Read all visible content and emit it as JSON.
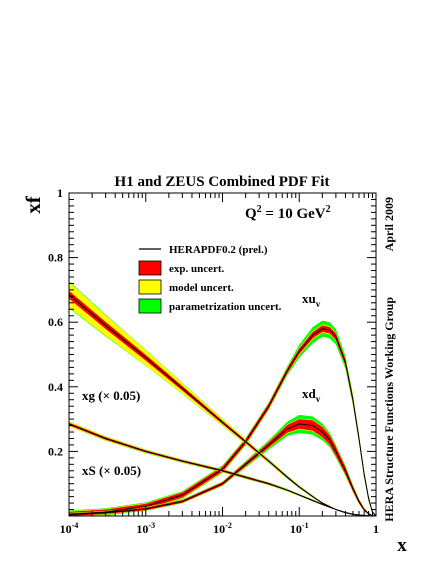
{
  "chart_data": {
    "type": "line",
    "title": "H1 and ZEUS Combined PDF Fit",
    "xlabel": "x",
    "ylabel": "xf",
    "x_scale": "log",
    "xlim": [
      0.0001,
      1
    ],
    "ylim": [
      0,
      1
    ],
    "x_ticks": [
      {
        "value": 0.0001,
        "base": "10",
        "exp": "-4"
      },
      {
        "value": 0.001,
        "base": "10",
        "exp": "-3"
      },
      {
        "value": 0.01,
        "base": "10",
        "exp": "-2"
      },
      {
        "value": 0.1,
        "base": "10",
        "exp": "-1"
      },
      {
        "value": 1,
        "base": "1",
        "exp": ""
      }
    ],
    "y_ticks": [
      {
        "value": 0.2,
        "label": "0.2"
      },
      {
        "value": 0.4,
        "label": "0.4"
      },
      {
        "value": 0.6,
        "label": "0.6"
      },
      {
        "value": 0.8,
        "label": "0.8"
      },
      {
        "value": 1.0,
        "label": "1"
      }
    ],
    "grid": false,
    "annotations": {
      "q2": {
        "base": "Q",
        "sup1": "2",
        "mid": " = 10 GeV",
        "sup2": "2"
      },
      "date": "April 2009",
      "group": "HERA Structure Functions Working Group"
    },
    "legend": {
      "placement": "top-center",
      "entries": [
        {
          "label": "HERAPDF0.2 (prel.)",
          "kind": "line",
          "color": "#000000"
        },
        {
          "label": "exp. uncert.",
          "kind": "box",
          "color": "#ff0000"
        },
        {
          "label": "model uncert.",
          "kind": "box",
          "color": "#ffff00"
        },
        {
          "label": "parametrization uncert.",
          "kind": "box",
          "color": "#00ff00"
        }
      ]
    },
    "colors": {
      "central": "#000000",
      "exp": "#ff0000",
      "model": "#ffff00",
      "param": "#00ff00"
    },
    "series": [
      {
        "label": {
          "base": "xu",
          "sub": "v",
          "suffix": ""
        },
        "x": [
          0.0001,
          0.0003,
          0.001,
          0.003,
          0.01,
          0.02,
          0.04,
          0.07,
          0.1,
          0.15,
          0.2,
          0.25,
          0.3,
          0.4,
          0.5,
          0.6,
          0.7,
          0.8,
          0.9,
          1.0
        ],
        "y": [
          0.005,
          0.012,
          0.03,
          0.065,
          0.145,
          0.23,
          0.34,
          0.45,
          0.51,
          0.56,
          0.58,
          0.575,
          0.555,
          0.475,
          0.36,
          0.24,
          0.13,
          0.055,
          0.012,
          0.0
        ],
        "exp_band": [
          0.008,
          0.008,
          0.008,
          0.008,
          0.008,
          0.008,
          0.008,
          0.008,
          0.009,
          0.01,
          0.01,
          0.01,
          0.01,
          0.01,
          0.01,
          0.009,
          0.008,
          0.006,
          0.003,
          0.0
        ],
        "model_band": [
          0.01,
          0.01,
          0.01,
          0.01,
          0.01,
          0.01,
          0.01,
          0.01,
          0.012,
          0.013,
          0.013,
          0.013,
          0.012,
          0.012,
          0.011,
          0.01,
          0.009,
          0.007,
          0.004,
          0.0
        ],
        "param_band": [
          0.012,
          0.012,
          0.012,
          0.012,
          0.012,
          0.012,
          0.012,
          0.014,
          0.02,
          0.025,
          0.025,
          0.025,
          0.024,
          0.02,
          0.016,
          0.013,
          0.01,
          0.008,
          0.004,
          0.0
        ]
      },
      {
        "label": {
          "base": "xd",
          "sub": "v",
          "suffix": ""
        },
        "x": [
          0.0001,
          0.0003,
          0.001,
          0.003,
          0.01,
          0.02,
          0.04,
          0.07,
          0.1,
          0.15,
          0.2,
          0.25,
          0.3,
          0.4,
          0.5,
          0.6,
          0.7,
          0.8,
          0.9,
          1.0
        ],
        "y": [
          0.004,
          0.01,
          0.022,
          0.045,
          0.1,
          0.16,
          0.22,
          0.27,
          0.285,
          0.28,
          0.26,
          0.235,
          0.2,
          0.14,
          0.085,
          0.045,
          0.02,
          0.007,
          0.001,
          0.0
        ],
        "exp_band": [
          0.004,
          0.004,
          0.004,
          0.004,
          0.005,
          0.006,
          0.008,
          0.012,
          0.015,
          0.016,
          0.016,
          0.015,
          0.014,
          0.011,
          0.008,
          0.006,
          0.004,
          0.002,
          0.001,
          0.0
        ],
        "model_band": [
          0.005,
          0.005,
          0.005,
          0.005,
          0.006,
          0.007,
          0.009,
          0.014,
          0.017,
          0.018,
          0.018,
          0.017,
          0.016,
          0.013,
          0.009,
          0.007,
          0.005,
          0.003,
          0.001,
          0.0
        ],
        "param_band": [
          0.006,
          0.006,
          0.006,
          0.006,
          0.007,
          0.01,
          0.014,
          0.022,
          0.028,
          0.028,
          0.026,
          0.022,
          0.02,
          0.016,
          0.011,
          0.008,
          0.005,
          0.003,
          0.001,
          0.0
        ]
      },
      {
        "label": {
          "base": "xg",
          "sub": "",
          "suffix": " (× 0.05)"
        },
        "x": [
          0.0001,
          0.0003,
          0.001,
          0.003,
          0.01,
          0.02,
          0.04,
          0.07,
          0.1,
          0.15,
          0.2,
          0.3,
          0.4,
          0.5,
          0.6,
          0.7,
          0.8,
          1.0
        ],
        "y": [
          0.685,
          0.59,
          0.49,
          0.395,
          0.29,
          0.23,
          0.17,
          0.12,
          0.09,
          0.06,
          0.04,
          0.02,
          0.01,
          0.005,
          0.002,
          0.001,
          0.0,
          0.0
        ],
        "exp_band": [
          0.012,
          0.011,
          0.009,
          0.007,
          0.005,
          0.004,
          0.003,
          0.003,
          0.002,
          0.002,
          0.002,
          0.001,
          0.001,
          0.0,
          0.0,
          0.0,
          0.0,
          0.0
        ],
        "model_band": [
          0.04,
          0.032,
          0.024,
          0.016,
          0.01,
          0.007,
          0.005,
          0.004,
          0.003,
          0.002,
          0.002,
          0.001,
          0.001,
          0.0,
          0.0,
          0.0,
          0.0,
          0.0
        ],
        "param_band": [
          0.042,
          0.034,
          0.025,
          0.017,
          0.011,
          0.008,
          0.006,
          0.005,
          0.004,
          0.003,
          0.002,
          0.001,
          0.001,
          0.0,
          0.0,
          0.0,
          0.0,
          0.0
        ]
      },
      {
        "label": {
          "base": "xS",
          "sub": "",
          "suffix": " (× 0.05)"
        },
        "x": [
          0.0001,
          0.0003,
          0.001,
          0.003,
          0.01,
          0.02,
          0.04,
          0.07,
          0.1,
          0.15,
          0.2,
          0.3,
          0.4,
          0.5,
          0.6,
          0.8,
          1.0
        ],
        "y": [
          0.285,
          0.24,
          0.2,
          0.17,
          0.14,
          0.12,
          0.1,
          0.08,
          0.065,
          0.048,
          0.036,
          0.02,
          0.011,
          0.006,
          0.003,
          0.001,
          0.0
        ],
        "exp_band": [
          0.004,
          0.004,
          0.003,
          0.003,
          0.003,
          0.003,
          0.003,
          0.002,
          0.002,
          0.002,
          0.002,
          0.001,
          0.001,
          0.0,
          0.0,
          0.0,
          0.0
        ],
        "model_band": [
          0.007,
          0.006,
          0.005,
          0.004,
          0.004,
          0.004,
          0.003,
          0.003,
          0.003,
          0.002,
          0.002,
          0.001,
          0.001,
          0.0,
          0.0,
          0.0,
          0.0
        ],
        "param_band": [
          0.008,
          0.007,
          0.006,
          0.005,
          0.005,
          0.005,
          0.004,
          0.004,
          0.003,
          0.003,
          0.002,
          0.001,
          0.001,
          0.0,
          0.0,
          0.0,
          0.0
        ]
      }
    ]
  }
}
